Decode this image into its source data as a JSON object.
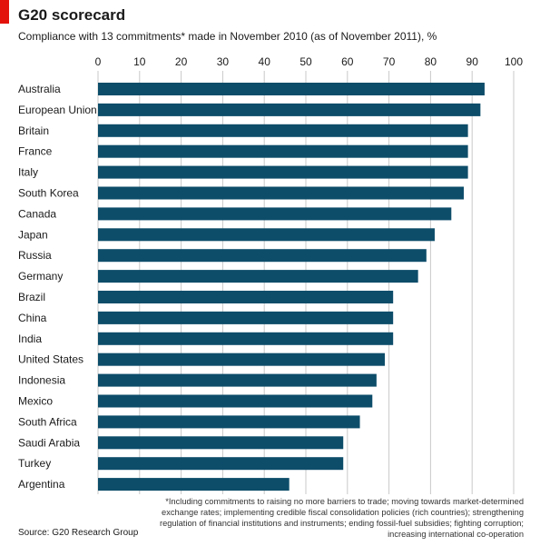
{
  "colors": {
    "accent": "#e3120b",
    "bar": "#0d4d6a",
    "grid": "#c9c9c9"
  },
  "header": {
    "title": "G20 scorecard",
    "subtitle": "Compliance with 13 commitments* made in November 2010 (as of November 2011), %"
  },
  "footer": {
    "source": "Source: G20 Research Group",
    "footnote": "*Including commitments to raising no more barriers to trade; moving towards market-determined exchange rates; implementing credible fiscal consolidation policies (rich countries); strengthening regulation of financial institutions and instruments; ending fossil-fuel subsidies; fighting corruption; increasing international co-operation"
  },
  "chart_data": {
    "type": "bar",
    "orientation": "horizontal",
    "xlim": [
      0,
      100
    ],
    "ticks": [
      0,
      10,
      20,
      30,
      40,
      50,
      60,
      70,
      80,
      90,
      100
    ],
    "axis_position": "top",
    "grid": true,
    "categories": [
      "Australia",
      "European Union",
      "Britain",
      "France",
      "Italy",
      "South Korea",
      "Canada",
      "Japan",
      "Russia",
      "Germany",
      "Brazil",
      "China",
      "India",
      "United States",
      "Indonesia",
      "Mexico",
      "South Africa",
      "Saudi Arabia",
      "Turkey",
      "Argentina"
    ],
    "values": [
      93,
      92,
      89,
      89,
      89,
      88,
      85,
      81,
      79,
      77,
      71,
      71,
      71,
      69,
      67,
      66,
      63,
      59,
      59,
      46
    ]
  }
}
